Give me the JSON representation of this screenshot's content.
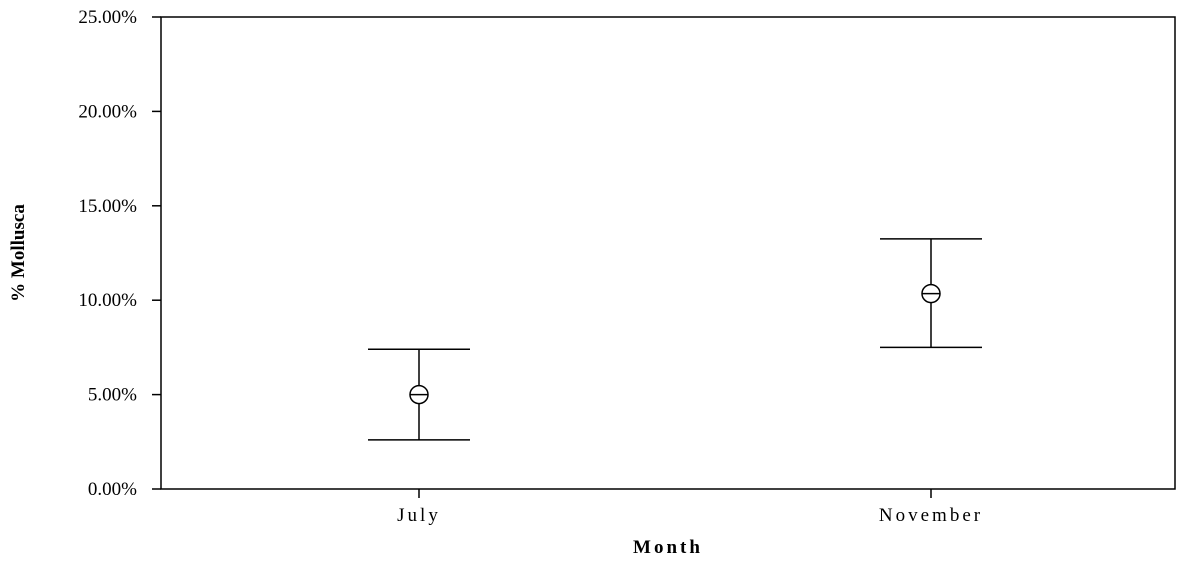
{
  "chart_data": {
    "type": "scatter",
    "title": "",
    "xlabel": "Month",
    "ylabel": "% Mollusca",
    "categories": [
      "July",
      "November"
    ],
    "y_ticks": [
      "0.00%",
      "5.00%",
      "10.00%",
      "15.00%",
      "20.00%",
      "25.00%"
    ],
    "ylim": [
      0,
      25
    ],
    "grid": false,
    "series": [
      {
        "points": [
          {
            "x": "July",
            "mean": 5.0,
            "lower": 2.6,
            "upper": 7.4
          },
          {
            "x": "November",
            "mean": 10.35,
            "lower": 7.5,
            "upper": 13.25
          }
        ]
      }
    ],
    "colors": {
      "marks": "#000000",
      "background": "#ffffff"
    }
  }
}
